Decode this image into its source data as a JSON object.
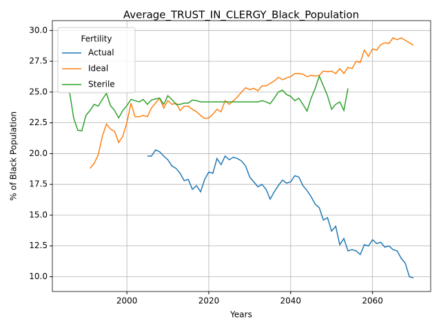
{
  "chart_data": {
    "type": "line",
    "title": "Average_TRUST_IN_CLERGY_Black_Population",
    "xlabel": "Years",
    "ylabel": "% of Black Population",
    "legend_title": "Fertility",
    "legend": "upper left",
    "grid": true,
    "xlim": [
      1981.8,
      2074.2
    ],
    "ylim": [
      8.8,
      30.8
    ],
    "xticks": [
      2000,
      2020,
      2040,
      2060
    ],
    "yticks": [
      {
        "value": 10,
        "label": "10.0"
      },
      12.5,
      {
        "value": 15,
        "label": "15.0"
      },
      17.5,
      {
        "value": 20,
        "label": "20.0"
      },
      22.5,
      {
        "value": 25,
        "label": "25.0"
      },
      27.5,
      {
        "value": 30,
        "label": "30.0"
      }
    ],
    "x": [
      1986,
      1987,
      1988,
      1989,
      1990,
      1991,
      1992,
      1993,
      1994,
      1995,
      1996,
      1997,
      1998,
      1999,
      2000,
      2001,
      2002,
      2003,
      2004,
      2005,
      2006,
      2007,
      2008,
      2009,
      2010,
      2011,
      2012,
      2013,
      2014,
      2015,
      2016,
      2017,
      2018,
      2019,
      2020,
      2021,
      2022,
      2023,
      2024,
      2025,
      2026,
      2027,
      2028,
      2029,
      2030,
      2031,
      2032,
      2033,
      2034,
      2035,
      2036,
      2037,
      2038,
      2039,
      2040,
      2041,
      2042,
      2043,
      2044,
      2045,
      2046,
      2047,
      2048,
      2049,
      2050,
      2051,
      2052,
      2053,
      2054,
      2055,
      2056,
      2057,
      2058,
      2059,
      2060,
      2061,
      2062,
      2063,
      2064,
      2065,
      2066,
      2067,
      2068,
      2069,
      2070
    ],
    "series": [
      {
        "name": "Actual",
        "color": "#1f77b4",
        "values": [
          null,
          null,
          null,
          null,
          null,
          null,
          null,
          null,
          null,
          null,
          null,
          null,
          null,
          null,
          null,
          null,
          null,
          null,
          null,
          19.8,
          19.8,
          20.3,
          20.15,
          19.8,
          19.5,
          19.0,
          18.8,
          18.4,
          17.8,
          17.9,
          17.1,
          17.4,
          16.9,
          17.9,
          18.5,
          18.4,
          19.6,
          19.1,
          19.8,
          19.5,
          19.7,
          19.6,
          19.4,
          19.0,
          18.1,
          17.7,
          17.3,
          17.5,
          17.1,
          16.3,
          16.9,
          17.4,
          17.85,
          17.6,
          17.7,
          18.2,
          18.1,
          17.4,
          17.0,
          16.5,
          15.9,
          15.6,
          14.6,
          14.8,
          13.7,
          14.1,
          12.6,
          13.1,
          12.1,
          12.2,
          12.1,
          11.8,
          12.6,
          12.5,
          13.0,
          12.7,
          12.8,
          12.4,
          12.5,
          12.2,
          12.1,
          11.5,
          11.1,
          10.0,
          9.9
        ]
      },
      {
        "name": "Ideal",
        "color": "#ff7f0e",
        "values": [
          null,
          null,
          null,
          null,
          null,
          18.8,
          19.2,
          19.9,
          21.4,
          22.4,
          22.0,
          21.8,
          20.9,
          21.4,
          22.5,
          24.1,
          23.0,
          23.0,
          23.1,
          23.0,
          23.7,
          24.1,
          24.5,
          23.7,
          24.3,
          24.0,
          24.1,
          23.5,
          23.85,
          23.85,
          23.6,
          23.4,
          23.1,
          22.85,
          22.9,
          23.2,
          23.6,
          23.4,
          24.3,
          24.0,
          24.3,
          24.6,
          25.0,
          25.35,
          25.2,
          25.3,
          25.1,
          25.5,
          25.5,
          25.7,
          25.9,
          26.2,
          26.0,
          26.15,
          26.25,
          26.5,
          26.5,
          26.45,
          26.25,
          26.35,
          26.3,
          26.35,
          26.7,
          26.65,
          26.7,
          26.5,
          26.9,
          26.5,
          27.0,
          26.9,
          27.5,
          27.4,
          28.4,
          27.9,
          28.5,
          28.4,
          28.85,
          29.0,
          28.95,
          29.4,
          29.25,
          29.4,
          29.2,
          29.0,
          28.8
        ]
      },
      {
        "name": "Sterile",
        "color": "#2ca02c",
        "values": [
          25.0,
          22.9,
          21.9,
          21.85,
          23.1,
          23.5,
          24.0,
          23.85,
          24.4,
          24.9,
          23.9,
          23.5,
          22.9,
          23.5,
          23.9,
          24.4,
          24.3,
          24.2,
          24.4,
          24.0,
          24.35,
          24.45,
          24.5,
          24.0,
          24.7,
          24.4,
          24.0,
          24.0,
          24.1,
          24.1,
          24.35,
          24.3,
          24.2,
          24.2,
          24.2,
          24.2,
          24.2,
          24.2,
          24.2,
          24.2,
          24.2,
          24.2,
          24.2,
          24.2,
          24.2,
          24.2,
          24.2,
          24.3,
          24.2,
          24.05,
          24.5,
          25.0,
          25.15,
          24.8,
          24.65,
          24.3,
          24.5,
          24.0,
          23.45,
          24.5,
          25.3,
          26.3,
          25.5,
          24.7,
          23.6,
          24.0,
          24.2,
          23.5,
          25.3,
          null,
          null,
          null,
          null,
          null,
          null,
          null,
          null,
          null,
          null,
          null,
          null,
          null,
          null,
          null,
          null
        ]
      }
    ]
  }
}
